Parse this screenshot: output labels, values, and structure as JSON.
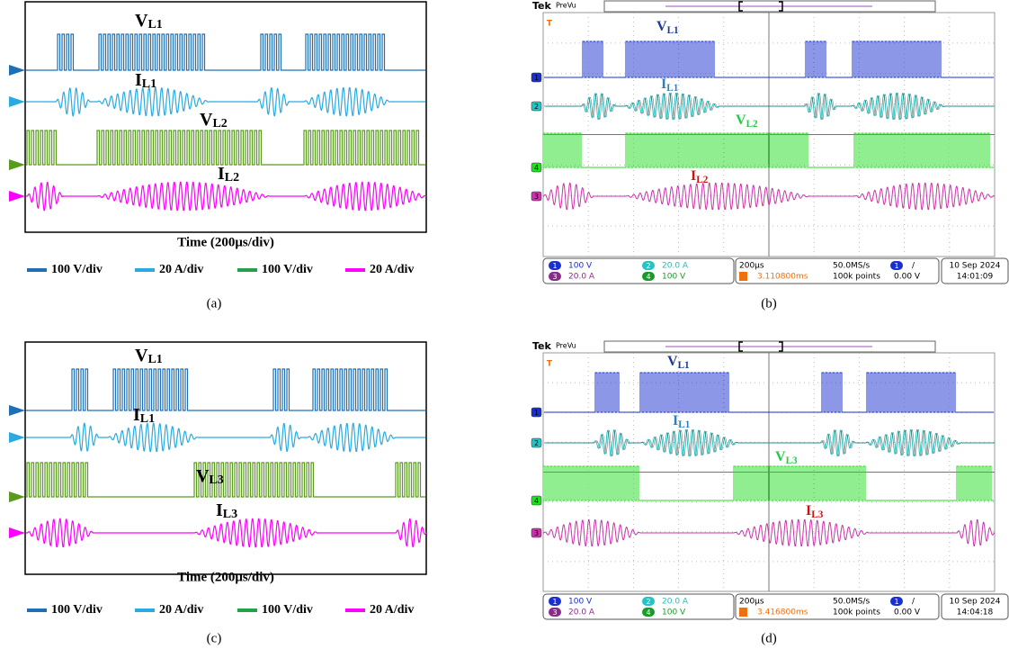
{
  "panels": [
    {
      "caption": "(a)",
      "labels": [
        {
          "main": "V",
          "sub": "L1"
        },
        {
          "main": "I",
          "sub": "L1"
        },
        {
          "main": "V",
          "sub": "L2"
        },
        {
          "main": "I",
          "sub": "L2"
        }
      ],
      "axis_label": "Time (200μs/div)",
      "legend": [
        "100 V/div",
        "20 A/div",
        "100 V/div",
        "20 A/div"
      ]
    },
    {
      "caption": "(b)",
      "brand": "Tek",
      "mode": "PreVu",
      "trigger_marker": "T",
      "labels": [
        {
          "main": "V",
          "sub": "L1"
        },
        {
          "main": "I",
          "sub": "L1"
        },
        {
          "main": "V",
          "sub": "L2"
        },
        {
          "main": "I",
          "sub": "L2"
        }
      ],
      "channels": [
        {
          "badge": "1",
          "scale": "100 V"
        },
        {
          "badge": "2",
          "scale": "20.0 A"
        },
        {
          "badge": "3",
          "scale": "20.0 A"
        },
        {
          "badge": "4",
          "scale": "100 V"
        }
      ],
      "timebase": "200μs",
      "trigger_position": "3.110800ms",
      "sample_rate": "50.0MS/s",
      "record_length": "100k points",
      "trigger_source": "1",
      "trigger_slope": "/",
      "trigger_level": "0.00 V",
      "date": "10 Sep 2024",
      "time": "14:01:09"
    },
    {
      "caption": "(c)",
      "labels": [
        {
          "main": "V",
          "sub": "L1"
        },
        {
          "main": "I",
          "sub": "L1"
        },
        {
          "main": "V",
          "sub": "L3"
        },
        {
          "main": "I",
          "sub": "L3"
        }
      ],
      "axis_label": "Time (200μs/div)",
      "legend": [
        "100 V/div",
        "20 A/div",
        "100 V/div",
        "20 A/div"
      ]
    },
    {
      "caption": "(d)",
      "brand": "Tek",
      "mode": "PreVu",
      "trigger_marker": "T",
      "labels": [
        {
          "main": "V",
          "sub": "L1"
        },
        {
          "main": "I",
          "sub": "L1"
        },
        {
          "main": "V",
          "sub": "L3"
        },
        {
          "main": "I",
          "sub": "L3"
        }
      ],
      "channels": [
        {
          "badge": "1",
          "scale": "100 V"
        },
        {
          "badge": "2",
          "scale": "20.0 A"
        },
        {
          "badge": "3",
          "scale": "20.0 A"
        },
        {
          "badge": "4",
          "scale": "100 V"
        }
      ],
      "timebase": "200μs",
      "trigger_position": "3.416800ms",
      "sample_rate": "50.0MS/s",
      "record_length": "100k points",
      "trigger_source": "1",
      "trigger_slope": "/",
      "trigger_level": "0.00 V",
      "date": "10 Sep 2024",
      "time": "14:04:18"
    }
  ]
}
